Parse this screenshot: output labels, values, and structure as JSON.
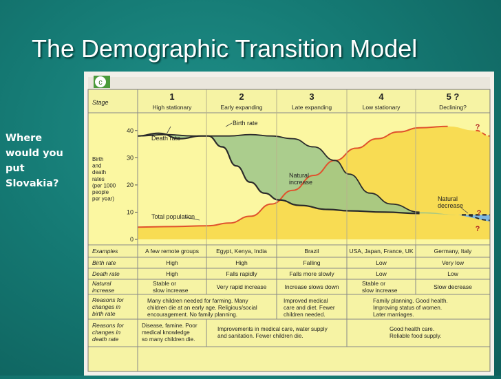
{
  "slide": {
    "title": "The Demographic Transition Model",
    "side_question": [
      "Where",
      "would you",
      "put",
      "Slovakia?"
    ]
  },
  "figure": {
    "corner_badge": "c",
    "row_label_stage": "Stage",
    "stages": [
      {
        "number": "1",
        "name": "High stationary"
      },
      {
        "number": "2",
        "name": "Early expanding"
      },
      {
        "number": "3",
        "name": "Late expanding"
      },
      {
        "number": "4",
        "name": "Low stationary"
      },
      {
        "number": "5 ?",
        "name": "Declining?"
      }
    ],
    "annotations": {
      "death_rate": "Death rate",
      "birth_rate": "Birth rate",
      "total_population": "Total population",
      "natural_increase": [
        "Natural",
        "increase"
      ],
      "natural_decrease": [
        "Natural",
        "decrease"
      ],
      "question_mark": "?"
    },
    "rows": [
      {
        "label": [
          "Examples"
        ],
        "cells": [
          [
            "A few remote groups"
          ],
          [
            "Egypt, Kenya, India"
          ],
          [
            "Brazil"
          ],
          [
            "USA, Japan, France, UK"
          ],
          [
            "Germany, Italy"
          ]
        ]
      },
      {
        "label": [
          "Birth rate"
        ],
        "cells": [
          [
            "High"
          ],
          [
            "High"
          ],
          [
            "Falling"
          ],
          [
            "Low"
          ],
          [
            "Very low"
          ]
        ]
      },
      {
        "label": [
          "Death rate"
        ],
        "cells": [
          [
            "High"
          ],
          [
            "Falls rapidly"
          ],
          [
            "Falls more slowly"
          ],
          [
            "Low"
          ],
          [
            "Low"
          ]
        ]
      },
      {
        "label": [
          "Natural",
          "increase"
        ],
        "cells": [
          [
            "Stable or",
            "slow increase"
          ],
          [
            "Very rapid increase"
          ],
          [
            "Increase slows down"
          ],
          [
            "Stable or",
            "slow increase"
          ],
          [
            "Slow decrease"
          ]
        ]
      }
    ],
    "reasons_birth": {
      "label": [
        "Reasons for",
        "changes in",
        "birth rate"
      ],
      "col12": [
        "Many children needed for farming. Many",
        "children die at an early age. Religious/social",
        "encouragement. No family planning."
      ],
      "col3": [
        "Improved medical",
        "care and diet. Fewer",
        "children needed."
      ],
      "col45": [
        "Family planning. Good health.",
        "Improving status of women.",
        "Later marriages."
      ]
    },
    "reasons_death": {
      "label": [
        "Reasons for",
        "changes in",
        "death rate"
      ],
      "col1": [
        "Disease, famine. Poor",
        "medical knowledge",
        "so many children die."
      ],
      "col23": [
        "Improvements in medical care, water supply",
        "and sanitation. Fewer children die."
      ],
      "col45": [
        "Good health care.",
        "Reliable food supply."
      ]
    }
  },
  "chart_data": {
    "type": "line",
    "ylabel": [
      "Birth",
      "and",
      "death",
      "rates",
      "(per 1000",
      "people",
      "per year)"
    ],
    "yticks": [
      0,
      10,
      20,
      30,
      40
    ],
    "ylim": [
      0,
      45
    ],
    "xlim": [
      0,
      5
    ],
    "series": [
      {
        "name": "Birth rate",
        "color": "#2b2b2b",
        "x": [
          0,
          0.4,
          0.8,
          1.0,
          1.3,
          1.6,
          1.9,
          2.2,
          2.5,
          2.8,
          3.0,
          3.3,
          3.6,
          4.0,
          4.6,
          5.0
        ],
        "y": [
          38,
          38.5,
          38,
          38,
          38,
          38.5,
          38,
          37,
          34,
          29,
          24,
          17,
          13,
          10,
          9,
          7
        ]
      },
      {
        "name": "Death rate",
        "color": "#2b2b2b",
        "x": [
          0,
          0.3,
          0.6,
          0.9,
          1.0,
          1.2,
          1.4,
          1.6,
          1.8,
          2.0,
          2.3,
          2.7,
          3.0,
          3.5,
          4.0,
          4.6,
          5.0
        ],
        "y": [
          38,
          39,
          37,
          38,
          38,
          34,
          27,
          21,
          17,
          14.5,
          12.5,
          11,
          10.5,
          10,
          9.5,
          9,
          9
        ]
      },
      {
        "name": "Total population",
        "color": "#e0522d",
        "x": [
          0,
          0.5,
          1.0,
          1.3,
          1.6,
          1.9,
          2.2,
          2.5,
          2.8,
          3.1,
          3.4,
          3.7,
          4.0,
          4.4,
          4.8,
          5.0
        ],
        "y": [
          4.5,
          4.7,
          5,
          6,
          8.5,
          13,
          18,
          23.5,
          29,
          33.5,
          37,
          39.5,
          41,
          41.5,
          40,
          38
        ]
      }
    ]
  }
}
